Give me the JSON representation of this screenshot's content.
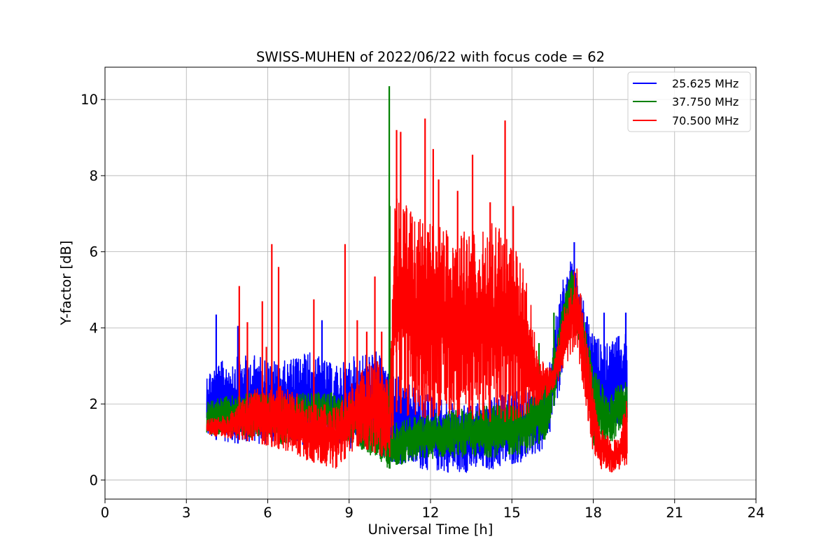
{
  "chart_data": {
    "type": "line",
    "title": "SWISS-MUHEN of 2022/06/22 with focus code = 62",
    "xlabel": "Universal Time [h]",
    "ylabel": "Y-factor [dB]",
    "xlim": [
      0,
      24
    ],
    "ylim": [
      -0.5,
      10.85
    ],
    "xticks": [
      0,
      3,
      6,
      9,
      12,
      15,
      18,
      21,
      24
    ],
    "yticks": [
      0,
      2,
      4,
      6,
      8,
      10
    ],
    "grid": true,
    "legend_position": "top-right",
    "series": [
      {
        "name": "25.625 MHz",
        "color": "#0000ff",
        "x": [
          3.75,
          4.5,
          5.5,
          6.5,
          7.5,
          8.5,
          9.3,
          10.0,
          10.5,
          11.5,
          12.5,
          13.5,
          14.5,
          15.5,
          16.3,
          16.8,
          17.2,
          17.6,
          18.0,
          18.5,
          19.0,
          19.25
        ],
        "y_low": [
          1.1,
          1.0,
          0.9,
          1.0,
          0.9,
          0.9,
          0.8,
          0.7,
          0.5,
          0.3,
          0.2,
          0.2,
          0.3,
          0.5,
          0.8,
          2.5,
          4.5,
          3.0,
          1.2,
          1.3,
          1.4,
          1.3
        ],
        "y_high": [
          2.9,
          3.2,
          3.3,
          3.1,
          3.4,
          3.0,
          3.3,
          3.4,
          2.9,
          2.4,
          2.1,
          2.0,
          2.2,
          2.4,
          2.6,
          5.2,
          5.8,
          4.8,
          3.8,
          3.6,
          3.8,
          4.0
        ],
        "spikes": [
          [
            4.1,
            4.35
          ],
          [
            4.9,
            4.05
          ],
          [
            8.0,
            4.2
          ],
          [
            10.6,
            2.7
          ],
          [
            17.3,
            6.25
          ],
          [
            18.4,
            4.4
          ],
          [
            19.2,
            4.4
          ]
        ]
      },
      {
        "name": "37.750 MHz",
        "color": "#008000",
        "x": [
          3.75,
          4.5,
          5.5,
          6.5,
          7.5,
          8.5,
          9.3,
          10.0,
          10.5,
          11.5,
          12.5,
          13.5,
          14.5,
          15.5,
          16.3,
          16.8,
          17.2,
          17.6,
          18.0,
          18.5,
          19.0,
          19.25
        ],
        "y_low": [
          1.2,
          1.2,
          1.1,
          0.9,
          1.2,
          1.1,
          0.9,
          0.5,
          0.3,
          0.5,
          0.6,
          0.6,
          0.6,
          0.7,
          1.1,
          2.8,
          4.6,
          3.0,
          0.9,
          0.8,
          1.3,
          1.4
        ],
        "y_high": [
          2.1,
          2.2,
          2.3,
          2.2,
          2.3,
          2.3,
          2.1,
          1.6,
          1.5,
          1.7,
          1.8,
          1.9,
          2.0,
          2.1,
          2.6,
          4.4,
          5.6,
          4.4,
          3.1,
          2.2,
          2.6,
          2.7
        ],
        "spikes": [
          [
            10.48,
            10.35
          ],
          [
            10.5,
            7.2
          ],
          [
            16.55,
            4.4
          ],
          [
            16.0,
            3.6
          ]
        ]
      },
      {
        "name": "70.500 MHz",
        "color": "#ff0000",
        "x": [
          3.75,
          4.5,
          5.5,
          6.5,
          7.5,
          8.5,
          9.3,
          10.0,
          10.5,
          10.7,
          11.5,
          12.5,
          13.5,
          14.5,
          15.5,
          16.0,
          16.5,
          17.0,
          17.4,
          17.8,
          18.2,
          18.7,
          19.0,
          19.25
        ],
        "y_low": [
          1.2,
          1.1,
          1.0,
          0.8,
          0.5,
          0.3,
          0.9,
          0.7,
          0.5,
          1.8,
          1.6,
          1.7,
          1.6,
          1.5,
          1.6,
          2.0,
          2.3,
          3.0,
          3.6,
          1.2,
          0.3,
          0.2,
          0.3,
          0.4
        ],
        "y_high": [
          1.6,
          1.7,
          2.4,
          2.5,
          2.1,
          1.9,
          2.8,
          3.2,
          2.6,
          7.8,
          6.9,
          6.6,
          6.6,
          6.8,
          5.6,
          3.2,
          2.9,
          4.8,
          5.7,
          3.5,
          1.5,
          1.0,
          1.2,
          2.4
        ],
        "spikes": [
          [
            4.95,
            5.1
          ],
          [
            5.25,
            4.15
          ],
          [
            5.8,
            4.7
          ],
          [
            5.95,
            3.5
          ],
          [
            6.15,
            6.2
          ],
          [
            6.4,
            5.6
          ],
          [
            7.7,
            4.75
          ],
          [
            8.85,
            6.2
          ],
          [
            9.3,
            4.2
          ],
          [
            9.65,
            3.9
          ],
          [
            9.95,
            5.35
          ],
          [
            10.2,
            3.9
          ],
          [
            10.75,
            9.2
          ],
          [
            10.9,
            9.15
          ],
          [
            11.8,
            9.5
          ],
          [
            12.1,
            8.7
          ],
          [
            12.3,
            7.9
          ],
          [
            13.0,
            7.6
          ],
          [
            13.55,
            8.55
          ],
          [
            14.2,
            7.3
          ],
          [
            14.75,
            9.45
          ],
          [
            15.05,
            7.2
          ]
        ]
      }
    ]
  }
}
